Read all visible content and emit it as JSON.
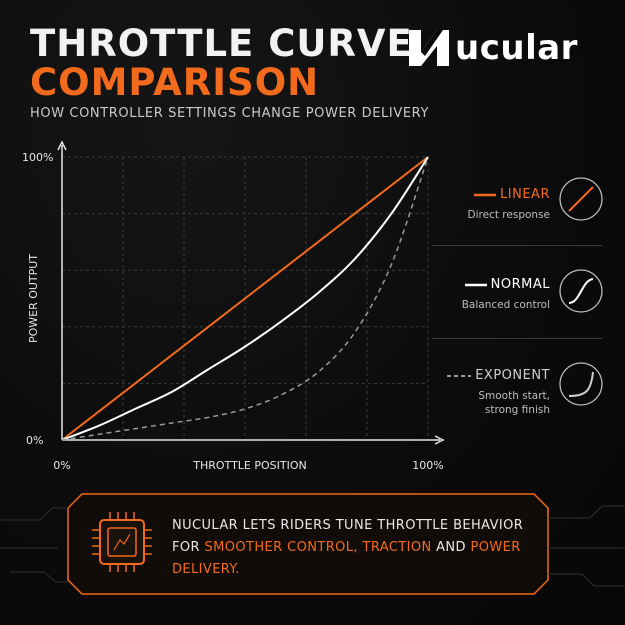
{
  "header": {
    "title_line1": "THROTTLE CURVE",
    "title_line2": "COMPARISON",
    "subtitle": "HOW CONTROLLER SETTINGS CHANGE POWER DELIVERY",
    "brand": "ucular"
  },
  "colors": {
    "accent": "#f26a1b",
    "linear": "#f26a1b",
    "normal": "#ffffff",
    "exponent": "#9a9a9a",
    "background": "#0b0b0b"
  },
  "legend": [
    {
      "name": "LINEAR",
      "desc": "Direct response",
      "icon": "linear-curve-icon",
      "style": "solid"
    },
    {
      "name": "NORMAL",
      "desc": "Balanced control",
      "icon": "normal-curve-icon",
      "style": "solid"
    },
    {
      "name": "EXPONENT",
      "desc_line1": "Smooth start,",
      "desc_line2": "strong finish",
      "icon": "exponent-curve-icon",
      "style": "dashed"
    }
  ],
  "callout": {
    "icon": "chip-icon",
    "text_start": "NUCULAR LETS RIDERS TUNE THROTTLE BEHAVIOR FOR ",
    "hl1": "SMOOTHER CONTROL",
    "sep1": ", ",
    "hl2": "TRACTION",
    "sep2": " AND ",
    "hl3": "POWER DELIVERY",
    "end": "."
  },
  "chart_data": {
    "type": "line",
    "title": "",
    "xlabel": "THROTTLE POSITION",
    "ylabel": "POWER OUTPUT",
    "x_ticks": [
      "0%",
      "100%"
    ],
    "y_ticks": [
      "0%",
      "100%"
    ],
    "xlim": [
      0,
      100
    ],
    "ylim": [
      0,
      100
    ],
    "grid": true,
    "legend_position": "right",
    "x": [
      0,
      10,
      20,
      30,
      40,
      50,
      60,
      70,
      80,
      90,
      100
    ],
    "series": [
      {
        "name": "LINEAR",
        "color": "#f26a1b",
        "dash": false,
        "values": [
          0,
          10,
          20,
          30,
          40,
          50,
          60,
          70,
          80,
          90,
          100
        ]
      },
      {
        "name": "NORMAL",
        "color": "#ffffff",
        "dash": false,
        "values": [
          0,
          5,
          11,
          17,
          25,
          33,
          42,
          52,
          64,
          80,
          100
        ]
      },
      {
        "name": "EXPONENT",
        "color": "#9a9a9a",
        "dash": true,
        "values": [
          0,
          2,
          4,
          6,
          8,
          11,
          16,
          24,
          38,
          62,
          100
        ]
      }
    ]
  }
}
